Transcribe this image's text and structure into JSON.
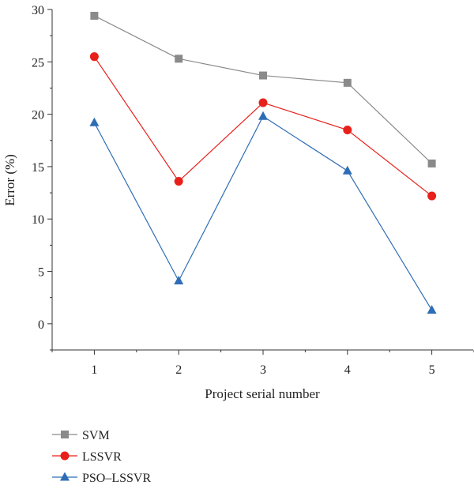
{
  "chart_data": {
    "type": "line",
    "xlabel": "Project serial number",
    "ylabel": "Error (%)",
    "x": [
      1,
      2,
      3,
      4,
      5
    ],
    "xticks": [
      "1",
      "2",
      "3",
      "4",
      "5"
    ],
    "yticks": [
      "0",
      "5",
      "10",
      "15",
      "20",
      "25",
      "30"
    ],
    "ylim": [
      -2.5,
      30
    ],
    "xlim": [
      0.5,
      5.5
    ],
    "grid": false,
    "legend_position": "bottom-left",
    "series": [
      {
        "name": "SVM",
        "values": [
          29.4,
          25.3,
          23.7,
          23.0,
          15.3
        ],
        "color": "#8a8a8a",
        "marker": "square"
      },
      {
        "name": "LSSVR",
        "values": [
          25.5,
          13.6,
          21.1,
          18.5,
          12.2
        ],
        "color": "#e8201a",
        "marker": "circle"
      },
      {
        "name": "PSO–LSSVR",
        "values": [
          19.2,
          4.1,
          19.8,
          14.6,
          1.3
        ],
        "color": "#2e6db5",
        "marker": "triangle"
      }
    ]
  }
}
